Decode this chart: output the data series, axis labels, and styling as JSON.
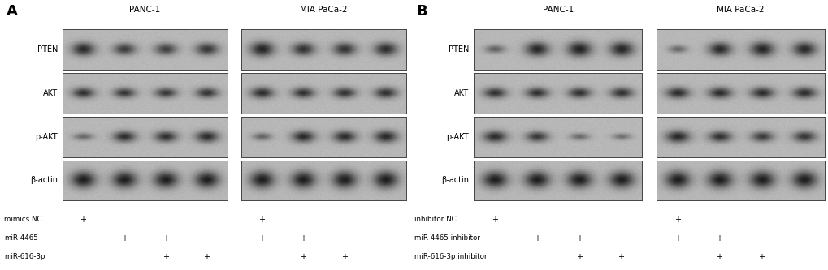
{
  "fig_width": 10.2,
  "fig_height": 3.33,
  "bg_color": "#ffffff",
  "blot_bg_gray": 0.72,
  "band_dark": 0.12,
  "border_color": "#555555",
  "row_labels_A": [
    "PTEN",
    "AKT",
    "p-AKT",
    "β-actin"
  ],
  "row_labels_B": [
    "PTEN",
    "AKT",
    "p-AKT",
    "β-actin"
  ],
  "cell_labels_A": [
    "PANC-1",
    "MIA PaCa-2"
  ],
  "cell_labels_B": [
    "PANC-1",
    "MIA PaCa-2"
  ],
  "bottom_labels_A": [
    "mimics NC",
    "miR-4465",
    "miR-616-3p"
  ],
  "bottom_labels_B": [
    "inhibitor NC",
    "miR-4465 inhibitor",
    "miR-616-3p inhibitor"
  ],
  "plus_positions_A": {
    "mimics NC": [
      0,
      4
    ],
    "miR-4465": [
      1,
      2,
      4,
      5
    ],
    "miR-616-3p": [
      2,
      3,
      5,
      6
    ]
  },
  "plus_positions_B": {
    "inhibitor NC": [
      0,
      4
    ],
    "miR-4465 inhibitor": [
      1,
      2,
      4,
      5
    ],
    "miR-616-3p inhibitor": [
      2,
      3,
      5,
      6
    ]
  },
  "note_fontsize": 7.0,
  "header_fontsize": 7.5,
  "label_fontsize": 7.0,
  "panel_letter_fontsize": 13
}
